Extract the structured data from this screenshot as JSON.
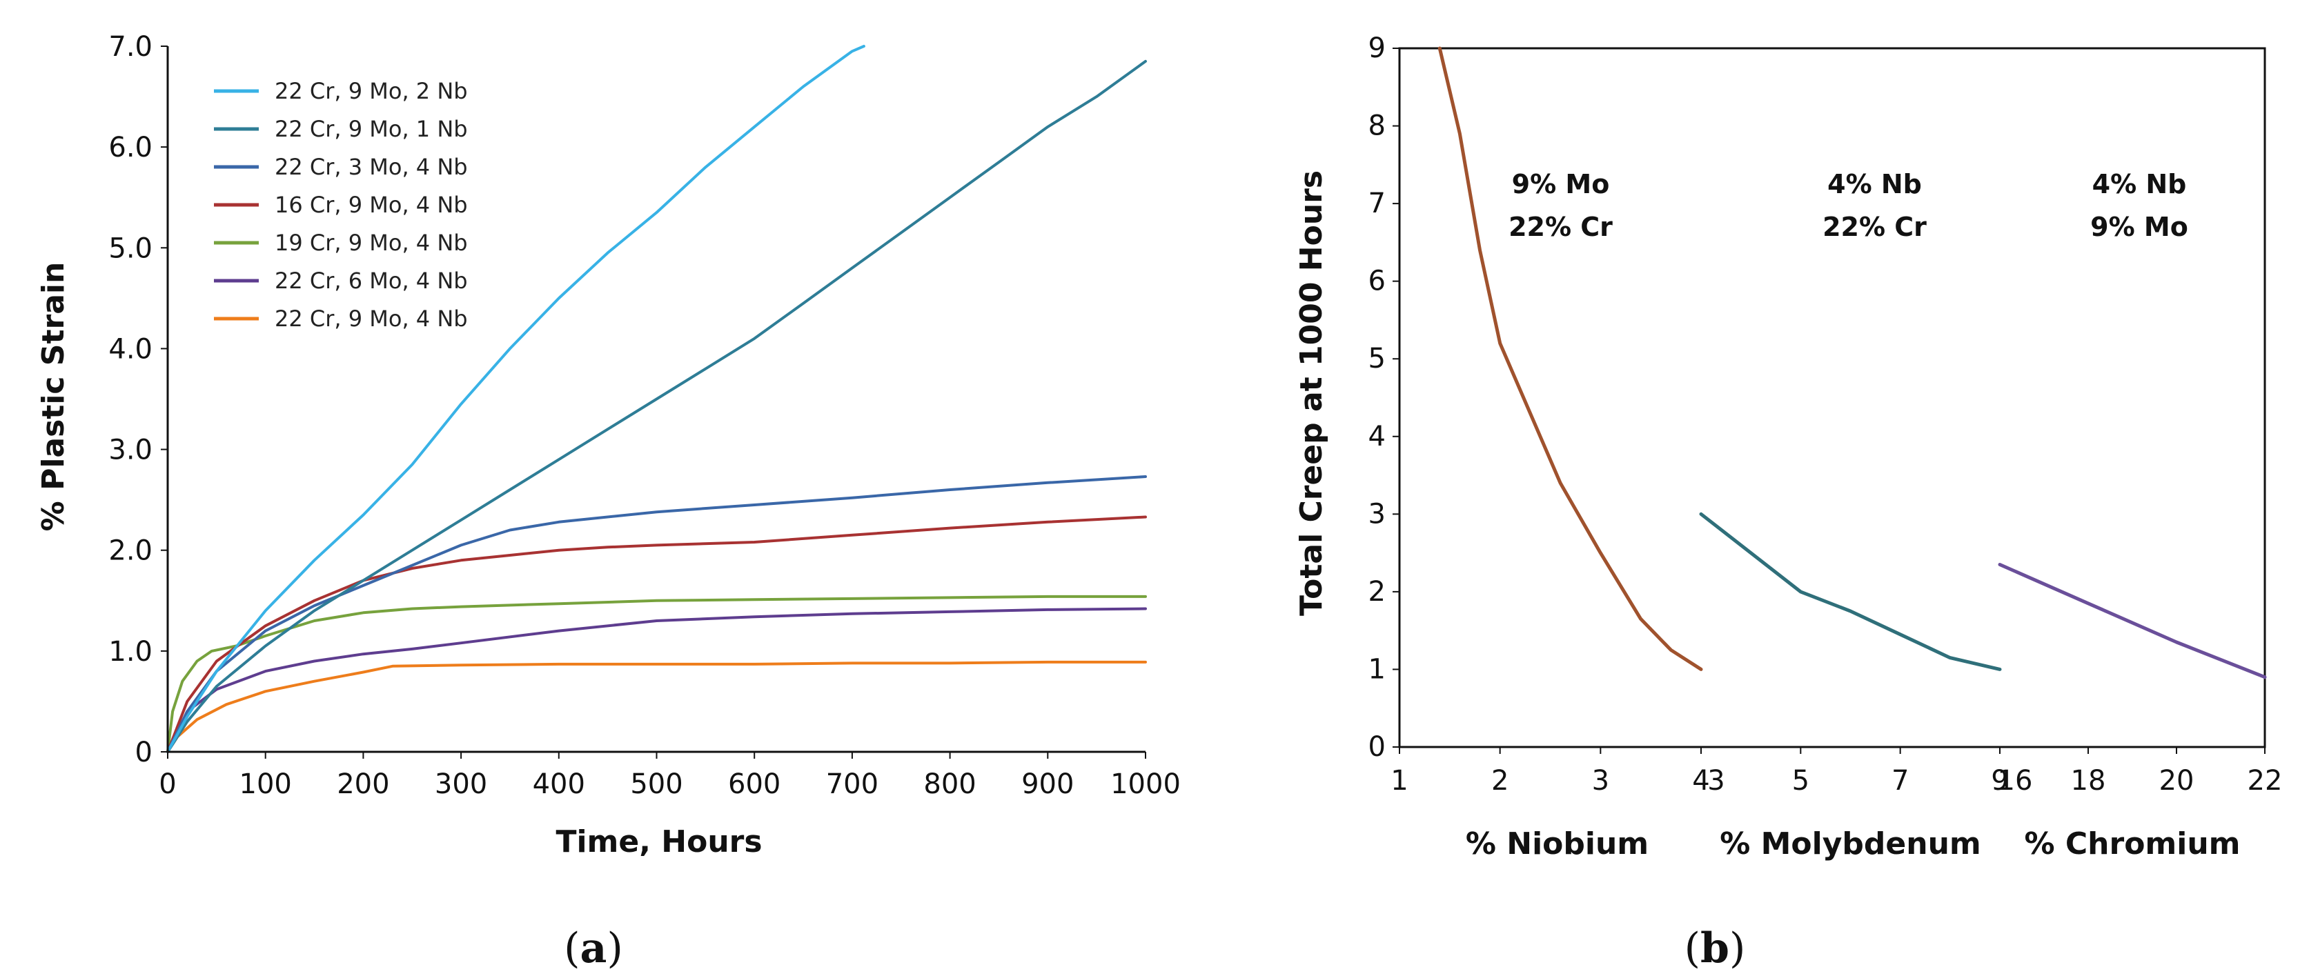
{
  "colors": {
    "axis": "#111111",
    "bg": "#ffffff"
  },
  "chart_data": [
    {
      "id": "a",
      "type": "line",
      "panel_label": "a",
      "title": "",
      "xlabel": "Time, Hours",
      "ylabel": "% Plastic Strain",
      "xlim": [
        0,
        1000
      ],
      "ylim": [
        0,
        7
      ],
      "xticks": [
        "0",
        "100",
        "200",
        "300",
        "400",
        "500",
        "600",
        "700",
        "800",
        "900",
        "1000"
      ],
      "yticks": [
        "0",
        "1.0",
        "2.0",
        "3.0",
        "4.0",
        "5.0",
        "6.0",
        "7.0"
      ],
      "grid": false,
      "legend_position": "top-left",
      "series": [
        {
          "name": "22 Cr, 9 Mo, 2 Nb",
          "color": "#38b2e6",
          "x": [
            0,
            20,
            50,
            100,
            150,
            200,
            250,
            300,
            350,
            400,
            450,
            500,
            550,
            600,
            650,
            700,
            712
          ],
          "y": [
            0,
            0.35,
            0.8,
            1.4,
            1.9,
            2.35,
            2.85,
            3.45,
            4.0,
            4.5,
            4.95,
            5.35,
            5.8,
            6.2,
            6.6,
            6.95,
            7.0
          ]
        },
        {
          "name": "22 Cr, 9 Mo, 1 Nb",
          "color": "#2e7d96",
          "x": [
            0,
            20,
            50,
            100,
            150,
            200,
            250,
            300,
            350,
            400,
            450,
            500,
            550,
            600,
            650,
            700,
            750,
            800,
            850,
            900,
            950,
            1000
          ],
          "y": [
            0,
            0.3,
            0.65,
            1.05,
            1.4,
            1.7,
            2.0,
            2.3,
            2.6,
            2.9,
            3.2,
            3.5,
            3.8,
            4.1,
            4.45,
            4.8,
            5.15,
            5.5,
            5.85,
            6.2,
            6.5,
            6.85
          ]
        },
        {
          "name": "22 Cr, 3 Mo, 4 Nb",
          "color": "#3a67a8",
          "x": [
            0,
            20,
            50,
            100,
            150,
            200,
            250,
            300,
            350,
            400,
            500,
            600,
            700,
            800,
            900,
            1000
          ],
          "y": [
            0,
            0.4,
            0.8,
            1.2,
            1.45,
            1.65,
            1.85,
            2.05,
            2.2,
            2.28,
            2.38,
            2.45,
            2.52,
            2.6,
            2.67,
            2.73
          ]
        },
        {
          "name": "16 Cr, 9 Mo, 4 Nb",
          "color": "#a83232",
          "x": [
            0,
            20,
            50,
            100,
            150,
            200,
            250,
            300,
            350,
            400,
            450,
            500,
            600,
            700,
            800,
            900,
            1000
          ],
          "y": [
            0,
            0.5,
            0.9,
            1.25,
            1.5,
            1.7,
            1.82,
            1.9,
            1.95,
            2.0,
            2.03,
            2.05,
            2.08,
            2.15,
            2.22,
            2.28,
            2.33
          ]
        },
        {
          "name": "19 Cr, 9 Mo, 4 Nb",
          "color": "#77a23d",
          "x": [
            0,
            5,
            15,
            30,
            45,
            70,
            100,
            150,
            200,
            250,
            300,
            400,
            500,
            600,
            700,
            800,
            900,
            1000
          ],
          "y": [
            0,
            0.4,
            0.7,
            0.9,
            1.0,
            1.05,
            1.15,
            1.3,
            1.38,
            1.42,
            1.44,
            1.47,
            1.5,
            1.51,
            1.52,
            1.53,
            1.54,
            1.54
          ]
        },
        {
          "name": "22 Cr, 6 Mo, 4 Nb",
          "color": "#5e3d8f",
          "x": [
            0,
            20,
            50,
            100,
            150,
            200,
            250,
            300,
            400,
            500,
            600,
            700,
            800,
            900,
            1000
          ],
          "y": [
            0,
            0.4,
            0.62,
            0.8,
            0.9,
            0.97,
            1.02,
            1.08,
            1.2,
            1.3,
            1.34,
            1.37,
            1.39,
            1.41,
            1.42
          ]
        },
        {
          "name": "22 Cr, 9 Mo, 4 Nb",
          "color": "#ee7d1b",
          "x": [
            0,
            10,
            30,
            60,
            100,
            150,
            200,
            230,
            300,
            400,
            500,
            600,
            700,
            800,
            900,
            1000
          ],
          "y": [
            0,
            0.15,
            0.32,
            0.47,
            0.6,
            0.7,
            0.79,
            0.85,
            0.86,
            0.87,
            0.87,
            0.87,
            0.88,
            0.88,
            0.89,
            0.89
          ]
        }
      ]
    },
    {
      "id": "b",
      "type": "line",
      "panel_label": "b",
      "title": "",
      "ylabel": "Total Creep at 1000 Hours",
      "ylim": [
        0,
        9
      ],
      "yticks": [
        "0",
        "1",
        "2",
        "3",
        "4",
        "5",
        "6",
        "7",
        "8",
        "9"
      ],
      "grid": false,
      "segments": [
        {
          "xlabel": "% Niobium",
          "ticks": [
            "1",
            "2",
            "3",
            "4"
          ],
          "xlim": [
            1,
            4
          ],
          "annotation": [
            "9% Mo",
            "22% Cr"
          ],
          "color": "#a0522d",
          "x": [
            1.4,
            1.6,
            1.8,
            2.0,
            2.3,
            2.6,
            3.0,
            3.4,
            3.7,
            4.0
          ],
          "y": [
            9.0,
            7.9,
            6.4,
            5.2,
            4.3,
            3.4,
            2.5,
            1.65,
            1.25,
            1.0
          ]
        },
        {
          "xlabel": "% Molybdenum",
          "ticks": [
            "3",
            "5",
            "7",
            "9"
          ],
          "xlim": [
            3,
            9
          ],
          "annotation": [
            "4% Nb",
            "22% Cr"
          ],
          "color": "#2f6f7a",
          "x": [
            3.0,
            4.0,
            5.0,
            6.0,
            7.0,
            8.0,
            9.0
          ],
          "y": [
            3.0,
            2.5,
            2.0,
            1.75,
            1.45,
            1.15,
            1.0
          ]
        },
        {
          "xlabel": "% Chromium",
          "ticks": [
            "16",
            "18",
            "20",
            "22"
          ],
          "xlim": [
            16,
            22
          ],
          "annotation": [
            "4% Nb",
            "9% Mo"
          ],
          "color": "#6a4f9a",
          "x": [
            16.0,
            18.0,
            20.0,
            22.0
          ],
          "y": [
            2.35,
            1.85,
            1.35,
            0.9
          ]
        }
      ]
    }
  ]
}
